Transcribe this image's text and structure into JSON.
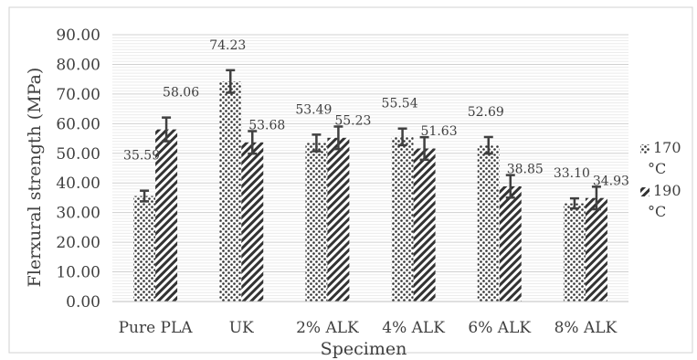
{
  "chart_data": {
    "type": "bar",
    "title": "",
    "xlabel": "Specimen",
    "ylabel": "Flerxural strength (MPa)",
    "ylim": [
      0,
      90
    ],
    "ytick_step": 10,
    "ytick_labels": [
      "0.00",
      "10.00",
      "20.00",
      "30.00",
      "40.00",
      "50.00",
      "60.00",
      "70.00",
      "80.00",
      "90.00"
    ],
    "grid": true,
    "legend_position": "right",
    "categories": [
      "Pure PLA",
      "UK",
      "2% ALK",
      "4% ALK",
      "6% ALK",
      "8% ALK"
    ],
    "series": [
      {
        "name_line1": "170",
        "name_line2": "°C",
        "pattern": "dots",
        "values": [
          35.59,
          74.23,
          53.49,
          55.54,
          52.69,
          33.1
        ],
        "labels": [
          "35.59",
          "74.23",
          "53.49",
          "55.54",
          "52.69",
          "33.10"
        ],
        "errors": [
          1.8,
          3.8,
          2.8,
          2.8,
          2.8,
          1.7
        ]
      },
      {
        "name_line1": "190",
        "name_line2": "°C",
        "pattern": "diagonal",
        "values": [
          58.06,
          53.68,
          55.23,
          51.63,
          38.85,
          34.93
        ],
        "labels": [
          "58.06",
          "53.68",
          "55.23",
          "51.63",
          "38.85",
          "34.93"
        ],
        "errors": [
          4.0,
          3.8,
          3.8,
          3.8,
          3.8,
          3.8
        ]
      }
    ]
  }
}
